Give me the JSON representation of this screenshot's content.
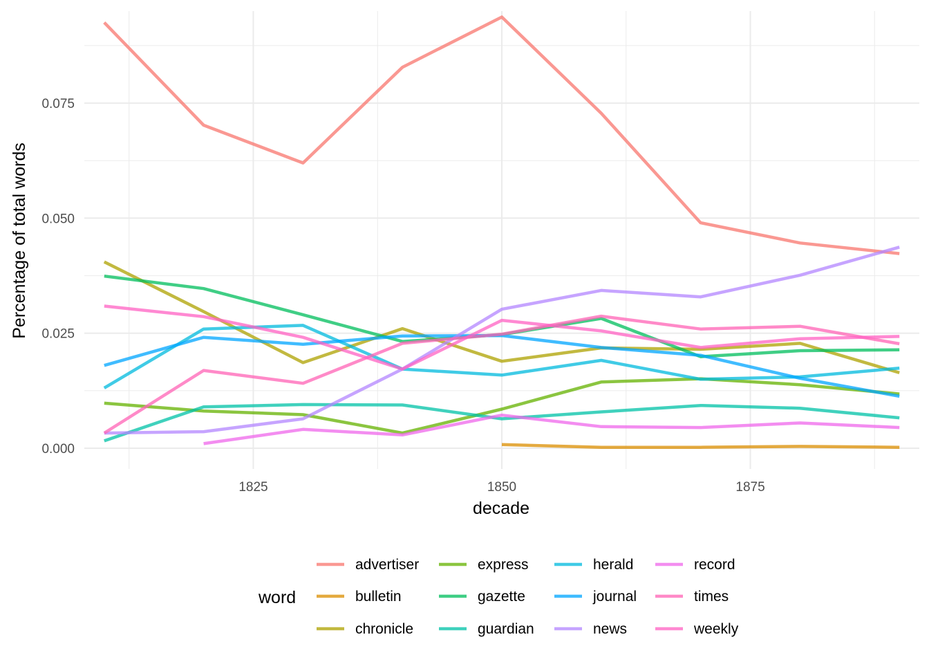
{
  "chart_data": {
    "type": "line",
    "xlabel": "decade",
    "ylabel": "Percentage of total words",
    "xlim": [
      1808,
      1892
    ],
    "ylim": [
      -0.0045,
      0.095
    ],
    "x_ticks": [
      1825,
      1850,
      1875
    ],
    "x_tick_labels": [
      "1825",
      "1850",
      "1875"
    ],
    "x_minor_ticks": [
      1812.5,
      1837.5,
      1862.5,
      1887.5
    ],
    "y_ticks": [
      0,
      0.025,
      0.05,
      0.075
    ],
    "y_tick_labels": [
      "0.000",
      "0.025",
      "0.050",
      "0.075"
    ],
    "y_minor_ticks": [
      0.0125,
      0.0375,
      0.0625,
      0.0875
    ],
    "grid": true,
    "legend": {
      "title": "word",
      "placement": "bottom",
      "columns": [
        [
          "advertiser",
          "bulletin",
          "chronicle"
        ],
        [
          "express",
          "gazette",
          "guardian"
        ],
        [
          "herald",
          "journal",
          "news"
        ],
        [
          "record",
          "times",
          "weekly"
        ]
      ]
    },
    "series": [
      {
        "name": "advertiser",
        "color": "#F8766D",
        "x": [
          1810,
          1820,
          1830,
          1840,
          1850,
          1860,
          1870,
          1880,
          1890
        ],
        "values": [
          0.0925,
          0.0702,
          0.062,
          0.0828,
          0.0937,
          0.0728,
          0.049,
          0.0446,
          0.0423
        ]
      },
      {
        "name": "bulletin",
        "color": "#DB8E00",
        "x": [
          1850,
          1860,
          1870,
          1880,
          1890
        ],
        "values": [
          0.0008,
          0.0002,
          0.0002,
          0.0004,
          0.0002
        ]
      },
      {
        "name": "chronicle",
        "color": "#AEA200",
        "x": [
          1810,
          1820,
          1830,
          1840,
          1850,
          1860,
          1870,
          1880,
          1890
        ],
        "values": [
          0.0405,
          0.0297,
          0.0186,
          0.026,
          0.0189,
          0.0218,
          0.0215,
          0.0228,
          0.0164
        ]
      },
      {
        "name": "express",
        "color": "#64B200",
        "x": [
          1810,
          1820,
          1830,
          1840,
          1850,
          1860,
          1870,
          1880,
          1890
        ],
        "values": [
          0.0098,
          0.0081,
          0.0073,
          0.0033,
          0.0085,
          0.0144,
          0.0151,
          0.0138,
          0.0118
        ]
      },
      {
        "name": "gazette",
        "color": "#00BD5C",
        "x": [
          1810,
          1820,
          1830,
          1840,
          1850,
          1860,
          1870,
          1880,
          1890
        ],
        "values": [
          0.0374,
          0.0347,
          0.029,
          0.0232,
          0.0247,
          0.0282,
          0.0199,
          0.0212,
          0.0214
        ]
      },
      {
        "name": "guardian",
        "color": "#00C1A7",
        "x": [
          1810,
          1820,
          1830,
          1840,
          1850,
          1860,
          1870,
          1880,
          1890
        ],
        "values": [
          0.0016,
          0.009,
          0.0095,
          0.0094,
          0.0064,
          0.0079,
          0.0093,
          0.0087,
          0.0066
        ]
      },
      {
        "name": "herald",
        "color": "#00BADE",
        "x": [
          1810,
          1820,
          1830,
          1840,
          1850,
          1860,
          1870,
          1880,
          1890
        ],
        "values": [
          0.0131,
          0.0259,
          0.0267,
          0.0172,
          0.0159,
          0.0191,
          0.015,
          0.0155,
          0.0174
        ]
      },
      {
        "name": "journal",
        "color": "#00A6FF",
        "x": [
          1810,
          1820,
          1830,
          1840,
          1850,
          1860,
          1870,
          1880,
          1890
        ],
        "values": [
          0.018,
          0.0241,
          0.0226,
          0.0244,
          0.0245,
          0.0219,
          0.0202,
          0.0152,
          0.0113
        ]
      },
      {
        "name": "news",
        "color": "#B385FF",
        "x": [
          1810,
          1820,
          1830,
          1840,
          1850,
          1860,
          1870,
          1880,
          1890
        ],
        "values": [
          0.0033,
          0.0036,
          0.0064,
          0.0172,
          0.0302,
          0.0343,
          0.0329,
          0.0376,
          0.0437
        ]
      },
      {
        "name": "record",
        "color": "#EF67EB",
        "x": [
          1820,
          1830,
          1840,
          1850,
          1860,
          1870,
          1880,
          1890
        ],
        "values": [
          0.001,
          0.0041,
          0.0029,
          0.0072,
          0.0047,
          0.0045,
          0.0055,
          0.0045
        ]
      },
      {
        "name": "times",
        "color": "#FF63B6",
        "x": [
          1810,
          1820,
          1830,
          1840,
          1850,
          1860,
          1870,
          1880,
          1890
        ],
        "values": [
          0.0033,
          0.0169,
          0.0141,
          0.0228,
          0.0248,
          0.0287,
          0.0259,
          0.0265,
          0.0227
        ]
      },
      {
        "name": "weekly",
        "color": "#FF61C3",
        "x": [
          1810,
          1820,
          1830,
          1840,
          1850,
          1860,
          1870,
          1880,
          1890
        ],
        "values": [
          0.0309,
          0.0286,
          0.0241,
          0.0172,
          0.0278,
          0.0255,
          0.0219,
          0.0238,
          0.0243
        ]
      }
    ]
  }
}
